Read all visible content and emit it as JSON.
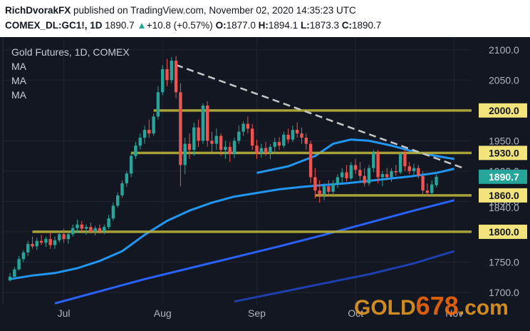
{
  "header": {
    "author": "RichDvorakFX",
    "published_text": " published on TradingView.com, November 02, 2020 14:35:23 UTC",
    "symbol": "COMEX_DL:GC1!, 1D",
    "last": "1890.7",
    "change": "+10.8 (+0.57%)",
    "o_label": "O:",
    "o_value": "1877.0",
    "h_label": "H:",
    "h_value": "1894.1",
    "l_label": "L:",
    "l_value": "1873.3",
    "c_label": "C:",
    "c_value": "1890.7"
  },
  "legend": {
    "title": "Gold Futures, 1D, COMEX",
    "ma1": "MA",
    "ma2": "MA",
    "ma3": "MA"
  },
  "watermark": {
    "part1": "GOLD",
    "part2": "678",
    "part3": ".com"
  },
  "colors": {
    "background": "#131722",
    "up": "#26a69a",
    "down": "#ef5350",
    "level": "#b8b03a",
    "ma_fast": "#2196f3",
    "ma_mid": "#2962ff",
    "ma_slow": "#1e40af",
    "trendline": "#c8c8c8"
  },
  "chart_data": {
    "type": "candlestick",
    "title": "Gold Futures, 1D, COMEX",
    "ylim": [
      1680,
      2115
    ],
    "y_ticks": [
      "2100.0",
      "2050.0",
      "1950.0",
      "1900.0",
      "1850.0",
      "1800.0",
      "1750.0",
      "1700.0"
    ],
    "x_ticks": [
      {
        "label": "Jul",
        "index": 12
      },
      {
        "label": "Aug",
        "index": 34
      },
      {
        "label": "Sep",
        "index": 55
      },
      {
        "label": "Oct",
        "index": 77
      },
      {
        "label": "Nov",
        "index": 99
      }
    ],
    "candles": [
      {
        "o": 1720,
        "h": 1732,
        "l": 1718,
        "c": 1726
      },
      {
        "o": 1726,
        "h": 1742,
        "l": 1724,
        "c": 1738
      },
      {
        "o": 1738,
        "h": 1760,
        "l": 1736,
        "c": 1755
      },
      {
        "o": 1755,
        "h": 1770,
        "l": 1750,
        "c": 1766
      },
      {
        "o": 1766,
        "h": 1785,
        "l": 1760,
        "c": 1780
      },
      {
        "o": 1780,
        "h": 1792,
        "l": 1772,
        "c": 1776
      },
      {
        "o": 1776,
        "h": 1790,
        "l": 1770,
        "c": 1785
      },
      {
        "o": 1785,
        "h": 1795,
        "l": 1778,
        "c": 1782
      },
      {
        "o": 1782,
        "h": 1792,
        "l": 1775,
        "c": 1788
      },
      {
        "o": 1788,
        "h": 1800,
        "l": 1772,
        "c": 1778
      },
      {
        "o": 1778,
        "h": 1792,
        "l": 1772,
        "c": 1786
      },
      {
        "o": 1786,
        "h": 1800,
        "l": 1782,
        "c": 1796
      },
      {
        "o": 1796,
        "h": 1805,
        "l": 1782,
        "c": 1788
      },
      {
        "o": 1788,
        "h": 1800,
        "l": 1780,
        "c": 1796
      },
      {
        "o": 1796,
        "h": 1812,
        "l": 1792,
        "c": 1806
      },
      {
        "o": 1806,
        "h": 1820,
        "l": 1798,
        "c": 1812
      },
      {
        "o": 1812,
        "h": 1818,
        "l": 1800,
        "c": 1805
      },
      {
        "o": 1805,
        "h": 1812,
        "l": 1795,
        "c": 1808
      },
      {
        "o": 1808,
        "h": 1815,
        "l": 1797,
        "c": 1800
      },
      {
        "o": 1800,
        "h": 1810,
        "l": 1794,
        "c": 1806
      },
      {
        "o": 1806,
        "h": 1812,
        "l": 1797,
        "c": 1801
      },
      {
        "o": 1801,
        "h": 1812,
        "l": 1796,
        "c": 1808
      },
      {
        "o": 1808,
        "h": 1828,
        "l": 1804,
        "c": 1822
      },
      {
        "o": 1822,
        "h": 1848,
        "l": 1818,
        "c": 1843
      },
      {
        "o": 1843,
        "h": 1865,
        "l": 1840,
        "c": 1860
      },
      {
        "o": 1860,
        "h": 1885,
        "l": 1856,
        "c": 1880
      },
      {
        "o": 1880,
        "h": 1900,
        "l": 1874,
        "c": 1896
      },
      {
        "o": 1896,
        "h": 1930,
        "l": 1890,
        "c": 1925
      },
      {
        "o": 1925,
        "h": 1948,
        "l": 1920,
        "c": 1942
      },
      {
        "o": 1942,
        "h": 1962,
        "l": 1936,
        "c": 1955
      },
      {
        "o": 1955,
        "h": 1975,
        "l": 1945,
        "c": 1968
      },
      {
        "o": 1968,
        "h": 1985,
        "l": 1955,
        "c": 1962
      },
      {
        "o": 1962,
        "h": 1995,
        "l": 1958,
        "c": 1990
      },
      {
        "o": 1990,
        "h": 2040,
        "l": 1985,
        "c": 2030
      },
      {
        "o": 2030,
        "h": 2075,
        "l": 2025,
        "c": 2068
      },
      {
        "o": 2068,
        "h": 2085,
        "l": 2040,
        "c": 2050
      },
      {
        "o": 2050,
        "h": 2088,
        "l": 2045,
        "c": 2082
      },
      {
        "o": 2082,
        "h": 2090,
        "l": 2020,
        "c": 2030
      },
      {
        "o": 2030,
        "h": 2045,
        "l": 1875,
        "c": 1910
      },
      {
        "o": 1910,
        "h": 1955,
        "l": 1895,
        "c": 1945
      },
      {
        "o": 1945,
        "h": 1962,
        "l": 1920,
        "c": 1935
      },
      {
        "o": 1935,
        "h": 1980,
        "l": 1925,
        "c": 1972
      },
      {
        "o": 1972,
        "h": 1985,
        "l": 1940,
        "c": 1950
      },
      {
        "o": 1950,
        "h": 2012,
        "l": 1945,
        "c": 2008
      },
      {
        "o": 2008,
        "h": 2015,
        "l": 1940,
        "c": 1950
      },
      {
        "o": 1950,
        "h": 1965,
        "l": 1930,
        "c": 1945
      },
      {
        "o": 1945,
        "h": 1970,
        "l": 1935,
        "c": 1958
      },
      {
        "o": 1958,
        "h": 1962,
        "l": 1925,
        "c": 1935
      },
      {
        "o": 1935,
        "h": 1950,
        "l": 1920,
        "c": 1940
      },
      {
        "o": 1940,
        "h": 1948,
        "l": 1915,
        "c": 1928
      },
      {
        "o": 1928,
        "h": 1955,
        "l": 1922,
        "c": 1950
      },
      {
        "o": 1950,
        "h": 1975,
        "l": 1945,
        "c": 1965
      },
      {
        "o": 1965,
        "h": 1982,
        "l": 1958,
        "c": 1978
      },
      {
        "o": 1978,
        "h": 1990,
        "l": 1962,
        "c": 1970
      },
      {
        "o": 1970,
        "h": 1978,
        "l": 1935,
        "c": 1942
      },
      {
        "o": 1942,
        "h": 1952,
        "l": 1920,
        "c": 1930
      },
      {
        "o": 1930,
        "h": 1945,
        "l": 1922,
        "c": 1938
      },
      {
        "o": 1938,
        "h": 1948,
        "l": 1925,
        "c": 1930
      },
      {
        "o": 1930,
        "h": 1945,
        "l": 1920,
        "c": 1940
      },
      {
        "o": 1940,
        "h": 1955,
        "l": 1930,
        "c": 1948
      },
      {
        "o": 1948,
        "h": 1956,
        "l": 1935,
        "c": 1942
      },
      {
        "o": 1942,
        "h": 1965,
        "l": 1938,
        "c": 1960
      },
      {
        "o": 1960,
        "h": 1970,
        "l": 1946,
        "c": 1952
      },
      {
        "o": 1952,
        "h": 1975,
        "l": 1948,
        "c": 1968
      },
      {
        "o": 1968,
        "h": 1980,
        "l": 1955,
        "c": 1962
      },
      {
        "o": 1962,
        "h": 1972,
        "l": 1945,
        "c": 1955
      },
      {
        "o": 1955,
        "h": 1962,
        "l": 1935,
        "c": 1945
      },
      {
        "o": 1945,
        "h": 1950,
        "l": 1880,
        "c": 1890
      },
      {
        "o": 1890,
        "h": 1905,
        "l": 1855,
        "c": 1868
      },
      {
        "o": 1868,
        "h": 1885,
        "l": 1848,
        "c": 1862
      },
      {
        "o": 1862,
        "h": 1880,
        "l": 1852,
        "c": 1875
      },
      {
        "o": 1875,
        "h": 1885,
        "l": 1858,
        "c": 1866
      },
      {
        "o": 1866,
        "h": 1885,
        "l": 1860,
        "c": 1880
      },
      {
        "o": 1880,
        "h": 1895,
        "l": 1872,
        "c": 1890
      },
      {
        "o": 1890,
        "h": 1905,
        "l": 1880,
        "c": 1898
      },
      {
        "o": 1898,
        "h": 1910,
        "l": 1883,
        "c": 1888
      },
      {
        "o": 1888,
        "h": 1915,
        "l": 1885,
        "c": 1910
      },
      {
        "o": 1910,
        "h": 1920,
        "l": 1895,
        "c": 1902
      },
      {
        "o": 1902,
        "h": 1915,
        "l": 1885,
        "c": 1892
      },
      {
        "o": 1892,
        "h": 1905,
        "l": 1875,
        "c": 1880
      },
      {
        "o": 1880,
        "h": 1910,
        "l": 1876,
        "c": 1905
      },
      {
        "o": 1905,
        "h": 1935,
        "l": 1898,
        "c": 1930
      },
      {
        "o": 1930,
        "h": 1935,
        "l": 1880,
        "c": 1890
      },
      {
        "o": 1890,
        "h": 1900,
        "l": 1875,
        "c": 1895
      },
      {
        "o": 1895,
        "h": 1905,
        "l": 1885,
        "c": 1890
      },
      {
        "o": 1890,
        "h": 1905,
        "l": 1882,
        "c": 1900
      },
      {
        "o": 1900,
        "h": 1910,
        "l": 1892,
        "c": 1898
      },
      {
        "o": 1898,
        "h": 1932,
        "l": 1895,
        "c": 1928
      },
      {
        "o": 1928,
        "h": 1935,
        "l": 1900,
        "c": 1908
      },
      {
        "o": 1908,
        "h": 1915,
        "l": 1895,
        "c": 1900
      },
      {
        "o": 1900,
        "h": 1912,
        "l": 1893,
        "c": 1905
      },
      {
        "o": 1905,
        "h": 1910,
        "l": 1888,
        "c": 1892
      },
      {
        "o": 1892,
        "h": 1900,
        "l": 1860,
        "c": 1868
      },
      {
        "o": 1868,
        "h": 1880,
        "l": 1858,
        "c": 1864
      },
      {
        "o": 1864,
        "h": 1885,
        "l": 1860,
        "c": 1878
      },
      {
        "o": 1877,
        "h": 1894.1,
        "l": 1873.3,
        "c": 1890.7
      }
    ],
    "levels": [
      {
        "value": 2000.0,
        "label": "2000.0",
        "from_index": 32
      },
      {
        "value": 1930.0,
        "label": "1930.0",
        "from_index": 27
      },
      {
        "value": 1860.0,
        "label": "1860.0",
        "from_index": 68
      },
      {
        "value": 1800.0,
        "label": "1800.0",
        "from_index": 5
      }
    ],
    "trendline": {
      "from_index": 37,
      "from_value": 2075,
      "to_index": 101,
      "to_value": 1905
    },
    "moving_averages": [
      {
        "name": "MA",
        "role": "fast",
        "points": [
          [
            55,
            1897
          ],
          [
            62,
            1908
          ],
          [
            68,
            1925
          ],
          [
            72,
            1945
          ],
          [
            76,
            1952
          ],
          [
            80,
            1950
          ],
          [
            85,
            1942
          ],
          [
            90,
            1932
          ],
          [
            95,
            1925
          ],
          [
            99,
            1920
          ]
        ]
      },
      {
        "name": "MA",
        "role": "mid",
        "points": [
          [
            0,
            1722
          ],
          [
            5,
            1728
          ],
          [
            10,
            1732
          ],
          [
            15,
            1740
          ],
          [
            20,
            1752
          ],
          [
            25,
            1768
          ],
          [
            30,
            1795
          ],
          [
            35,
            1818
          ],
          [
            40,
            1835
          ],
          [
            45,
            1848
          ],
          [
            50,
            1858
          ],
          [
            55,
            1864
          ],
          [
            60,
            1870
          ],
          [
            65,
            1874
          ],
          [
            70,
            1877
          ],
          [
            75,
            1880
          ],
          [
            80,
            1884
          ],
          [
            85,
            1888
          ],
          [
            90,
            1892
          ],
          [
            95,
            1897
          ],
          [
            99,
            1904
          ]
        ]
      },
      {
        "name": "MA",
        "role": "slow",
        "points": [
          [
            10,
            1682
          ],
          [
            20,
            1702
          ],
          [
            30,
            1722
          ],
          [
            40,
            1740
          ],
          [
            50,
            1758
          ],
          [
            60,
            1776
          ],
          [
            70,
            1795
          ],
          [
            80,
            1815
          ],
          [
            90,
            1835
          ],
          [
            99,
            1852
          ]
        ]
      },
      {
        "name": "MA",
        "role": "slowest",
        "points": [
          [
            50,
            1685
          ],
          [
            60,
            1700
          ],
          [
            70,
            1715
          ],
          [
            80,
            1730
          ],
          [
            90,
            1748
          ],
          [
            99,
            1768
          ]
        ]
      }
    ],
    "current_price": {
      "value": 1890.7,
      "label": "1890.7"
    },
    "price_axis_extra": {
      "value": 1840.0,
      "label": "1840.0"
    }
  }
}
